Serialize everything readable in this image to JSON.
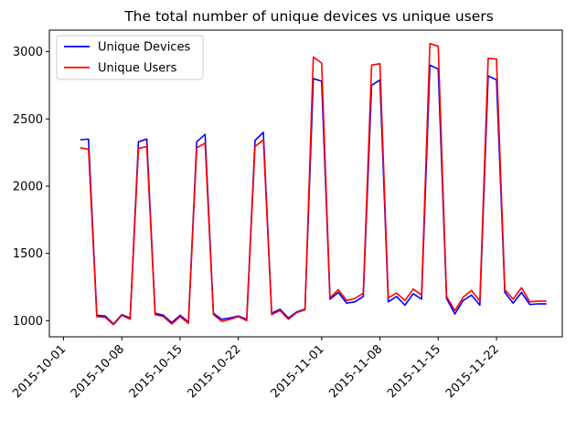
{
  "chart_data": {
    "type": "line",
    "title": "The total number of unique devices vs unique users",
    "xlabel": "",
    "ylabel": "",
    "x_start": "2015-10-03",
    "x": [
      "2015-10-03",
      "2015-10-04",
      "2015-10-05",
      "2015-10-06",
      "2015-10-07",
      "2015-10-08",
      "2015-10-09",
      "2015-10-10",
      "2015-10-11",
      "2015-10-12",
      "2015-10-13",
      "2015-10-14",
      "2015-10-15",
      "2015-10-16",
      "2015-10-17",
      "2015-10-18",
      "2015-10-19",
      "2015-10-20",
      "2015-10-21",
      "2015-10-22",
      "2015-10-23",
      "2015-10-24",
      "2015-10-25",
      "2015-10-26",
      "2015-10-27",
      "2015-10-28",
      "2015-10-29",
      "2015-10-30",
      "2015-10-31",
      "2015-11-01",
      "2015-11-02",
      "2015-11-03",
      "2015-11-04",
      "2015-11-05",
      "2015-11-06",
      "2015-11-07",
      "2015-11-08",
      "2015-11-09",
      "2015-11-10",
      "2015-11-11",
      "2015-11-12",
      "2015-11-13",
      "2015-11-14",
      "2015-11-15",
      "2015-11-16",
      "2015-11-17",
      "2015-11-18",
      "2015-11-19",
      "2015-11-20",
      "2015-11-21",
      "2015-11-22",
      "2015-11-23",
      "2015-11-24",
      "2015-11-25",
      "2015-11-26",
      "2015-11-27",
      "2015-11-28"
    ],
    "xticks": [
      "2015-10-01",
      "2015-10-08",
      "2015-10-15",
      "2015-10-22",
      "2015-11-01",
      "2015-11-08",
      "2015-11-15",
      "2015-11-22"
    ],
    "ylim": [
      880,
      3160
    ],
    "yticks": [
      1000,
      1500,
      2000,
      2500,
      3000
    ],
    "grid": false,
    "legend_position": "top-left",
    "series": [
      {
        "name": "Unique Devices",
        "color": "#0000ff",
        "values": [
          2345,
          2350,
          1040,
          1035,
          975,
          1045,
          1020,
          2330,
          2350,
          1055,
          1040,
          985,
          1040,
          990,
          2330,
          2385,
          1055,
          1010,
          1020,
          1035,
          1010,
          2340,
          2400,
          1055,
          1085,
          1020,
          1065,
          1085,
          2800,
          2780,
          1160,
          1210,
          1130,
          1140,
          1180,
          2750,
          2790,
          1140,
          1180,
          1115,
          1200,
          1160,
          2900,
          2870,
          1165,
          1050,
          1150,
          1190,
          1115,
          2820,
          2790,
          1210,
          1130,
          1210,
          1120,
          1125,
          1125
        ]
      },
      {
        "name": "Unique Users",
        "color": "#ff0000",
        "values": [
          2285,
          2275,
          1030,
          1025,
          970,
          1040,
          1010,
          2280,
          2295,
          1045,
          1030,
          975,
          1030,
          980,
          2285,
          2320,
          1045,
          995,
          1010,
          1030,
          1000,
          2295,
          2345,
          1045,
          1075,
          1010,
          1060,
          1080,
          2960,
          2915,
          1170,
          1230,
          1150,
          1165,
          1205,
          2900,
          2910,
          1170,
          1205,
          1150,
          1235,
          1190,
          3060,
          3040,
          1180,
          1075,
          1175,
          1225,
          1145,
          2950,
          2945,
          1230,
          1160,
          1245,
          1140,
          1145,
          1145
        ]
      }
    ]
  }
}
